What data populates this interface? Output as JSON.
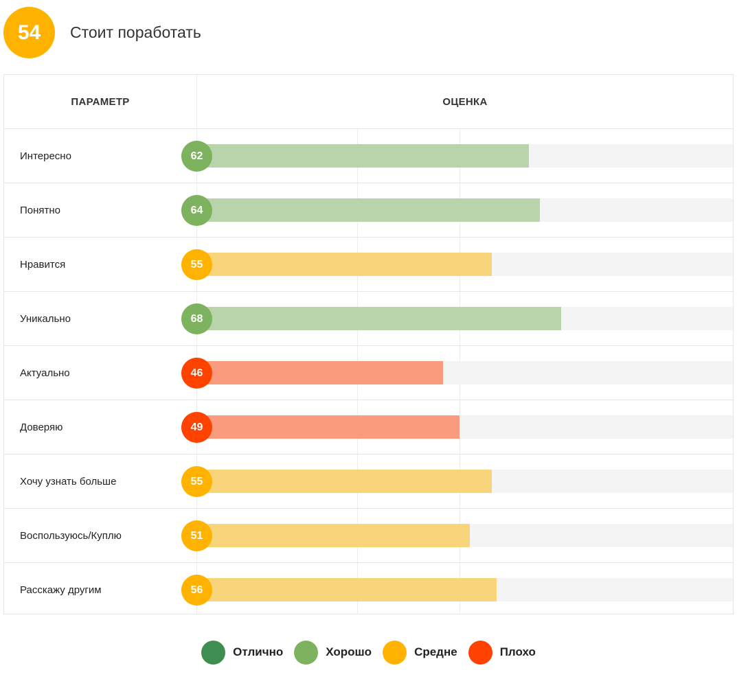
{
  "header": {
    "score": "54",
    "title": "Стоит поработать",
    "score_color": "#FFB300"
  },
  "table": {
    "param_header": "ПАРАМЕТР",
    "score_header": "ОЦЕНКА"
  },
  "colors": {
    "excellent": "#3E8E52",
    "good": "#7DB35F",
    "good_bar": "#B8D4AB",
    "average": "#FFB300",
    "average_bar": "#F8D47B",
    "bad": "#FF4200",
    "bad_bar": "#F99C7E"
  },
  "chart_data": {
    "type": "bar",
    "orientation": "horizontal",
    "title": "Стоит поработать",
    "overall_score": 54,
    "xlim": [
      0,
      100
    ],
    "categories": [
      "Интересно",
      "Понятно",
      "Нравится",
      "Уникально",
      "Актуально",
      "Доверяю",
      "Хочу узнать больше",
      "Воспользуюсь/Куплю",
      "Расскажу другим"
    ],
    "values": [
      62,
      64,
      55,
      68,
      46,
      49,
      55,
      51,
      56
    ],
    "ratings": [
      "good",
      "good",
      "average",
      "good",
      "bad",
      "bad",
      "average",
      "average",
      "average"
    ],
    "legend": [
      {
        "key": "excellent",
        "label": "Отлично"
      },
      {
        "key": "good",
        "label": "Хорошо"
      },
      {
        "key": "average",
        "label": "Средне"
      },
      {
        "key": "bad",
        "label": "Плохо"
      }
    ]
  }
}
